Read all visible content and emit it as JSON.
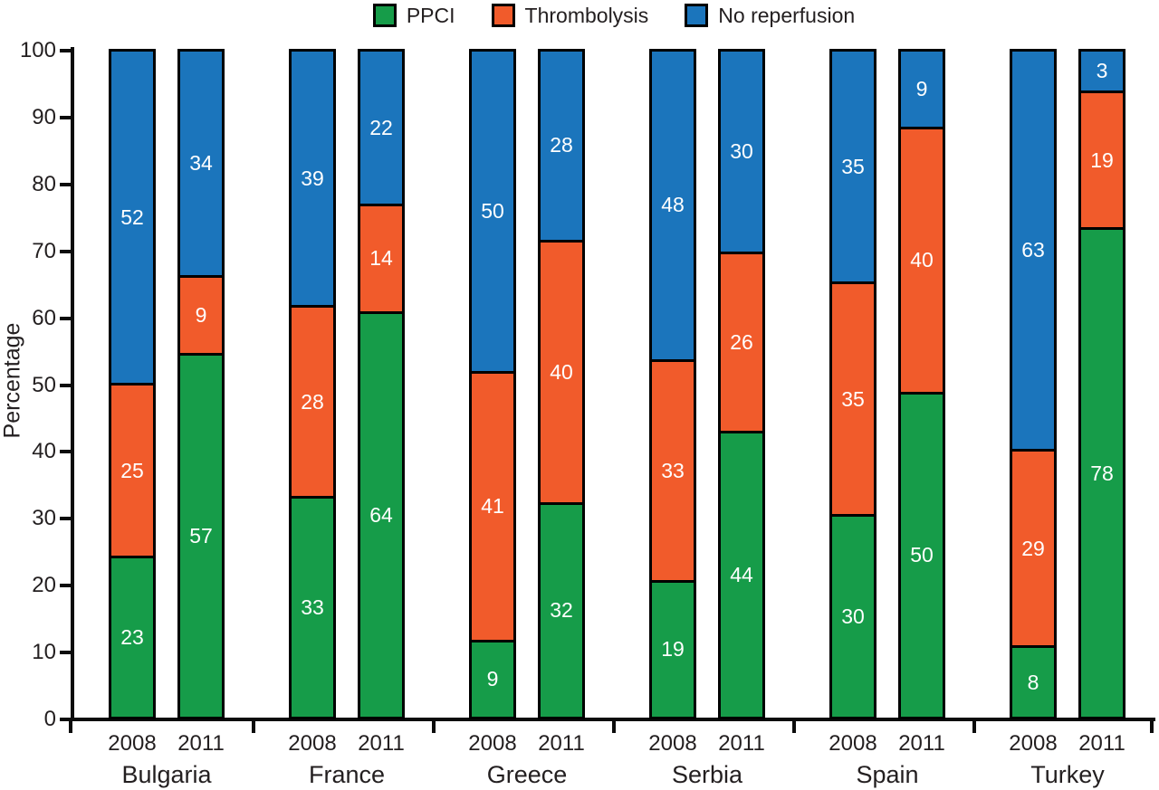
{
  "figure": {
    "background": "#ffffff",
    "text_color": "#231f20",
    "axis_color": "#0c0c0c"
  },
  "chart_data": {
    "type": "bar",
    "stacked": true,
    "orientation": "vertical",
    "title": "",
    "xlabel": "",
    "ylabel": "Percentage",
    "ylim": [
      0,
      100
    ],
    "yticks": [
      0,
      10,
      20,
      30,
      40,
      50,
      60,
      70,
      80,
      90,
      100
    ],
    "grid": false,
    "bar_value_labels": true,
    "value_label_color": "#ffffff",
    "bar_border_color": "#000000",
    "legend_position": "top",
    "legend": [
      {
        "label": "PPCI",
        "color": "#169c49"
      },
      {
        "label": "Thrombolysis",
        "color": "#f15b2b"
      },
      {
        "label": "No reperfusion",
        "color": "#1b75bc"
      }
    ],
    "stack_order_bottom_to_top": [
      "PPCI",
      "Thrombolysis",
      "No reperfusion"
    ],
    "series_colors": {
      "PPCI": "#169c49",
      "Thrombolysis": "#f15b2b",
      "No reperfusion": "#1b75bc"
    },
    "groups": [
      {
        "category": "Bulgaria",
        "bars": [
          {
            "x": "2008",
            "values": {
              "PPCI": 23,
              "Thrombolysis": 25,
              "No reperfusion": 52
            }
          },
          {
            "x": "2011",
            "values": {
              "PPCI": 57,
              "Thrombolysis": 9,
              "No reperfusion": 34
            }
          }
        ]
      },
      {
        "category": "France",
        "bars": [
          {
            "x": "2008",
            "values": {
              "PPCI": 33,
              "Thrombolysis": 28,
              "No reperfusion": 39
            }
          },
          {
            "x": "2011",
            "values": {
              "PPCI": 64,
              "Thrombolysis": 14,
              "No reperfusion": 22
            }
          }
        ]
      },
      {
        "category": "Greece",
        "bars": [
          {
            "x": "2008",
            "values": {
              "PPCI": 9,
              "Thrombolysis": 41,
              "No reperfusion": 50
            }
          },
          {
            "x": "2011",
            "values": {
              "PPCI": 32,
              "Thrombolysis": 40,
              "No reperfusion": 28
            }
          }
        ]
      },
      {
        "category": "Serbia",
        "bars": [
          {
            "x": "2008",
            "values": {
              "PPCI": 19,
              "Thrombolysis": 33,
              "No reperfusion": 48
            }
          },
          {
            "x": "2011",
            "values": {
              "PPCI": 44,
              "Thrombolysis": 26,
              "No reperfusion": 30
            }
          }
        ]
      },
      {
        "category": "Spain",
        "bars": [
          {
            "x": "2008",
            "values": {
              "PPCI": 30,
              "Thrombolysis": 35,
              "No reperfusion": 35
            }
          },
          {
            "x": "2011",
            "values": {
              "PPCI": 50,
              "Thrombolysis": 40,
              "No reperfusion": 9
            }
          }
        ]
      },
      {
        "category": "Turkey",
        "bars": [
          {
            "x": "2008",
            "values": {
              "PPCI": 8,
              "Thrombolysis": 29,
              "No reperfusion": 63
            }
          },
          {
            "x": "2011",
            "values": {
              "PPCI": 78,
              "Thrombolysis": 19,
              "No reperfusion": 3
            }
          }
        ]
      }
    ]
  }
}
